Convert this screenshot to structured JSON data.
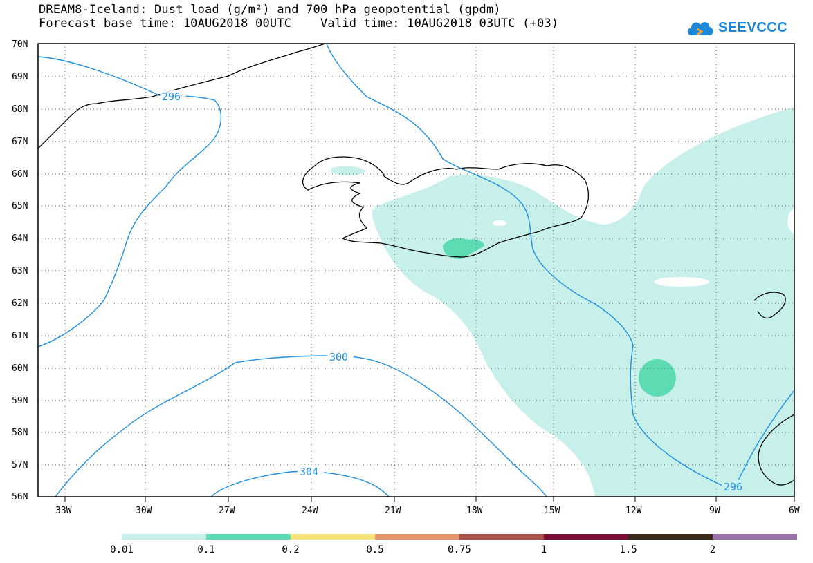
{
  "title": {
    "line1": "DREAM8-Iceland: Dust load (g/m²) and 700 hPa geopotential (gpdm)",
    "line2": "Forecast base time: 10AUG2018 00UTC    Valid time: 10AUG2018 03UTC (+03)"
  },
  "logo": {
    "text": "SEEVCCC",
    "icon": "cloud-icon"
  },
  "map": {
    "lat_labels": [
      "70N",
      "69N",
      "68N",
      "67N",
      "66N",
      "65N",
      "64N",
      "63N",
      "62N",
      "61N",
      "60N",
      "59N",
      "58N",
      "57N",
      "56N"
    ],
    "lon_labels": [
      "33W",
      "30W",
      "27W",
      "24W",
      "21W",
      "18W",
      "15W",
      "12W",
      "9W",
      "6W"
    ],
    "contour_labels": [
      "296",
      "300",
      "304",
      "296"
    ]
  },
  "colorbar": {
    "labels": [
      "0.01",
      "0.1",
      "0.2",
      "0.5",
      "0.75",
      "1",
      "1.5",
      "2"
    ],
    "colors": [
      "#c8f0ea",
      "#5ddcb4",
      "#f5e37a",
      "#e7956b",
      "#a8504a",
      "#7a0e34",
      "#3a2a1a",
      "#9a70a8"
    ]
  },
  "colors": {
    "dust_low": "#c8f0ea",
    "dust_mid": "#5ddcb4",
    "contour": "#1e8fe0"
  }
}
